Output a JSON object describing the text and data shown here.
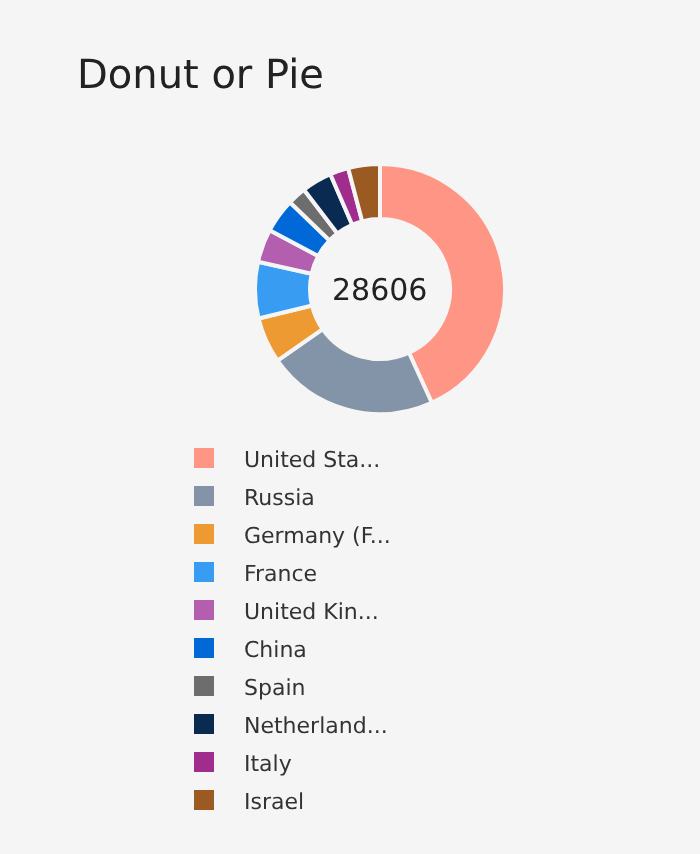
{
  "chart_data": {
    "type": "donut",
    "title": "Donut or Pie",
    "categories": [
      "United Sta...",
      "Russia",
      "Germany (F...",
      "France",
      "United Kin...",
      "China",
      "Spain",
      "Netherland...",
      "Italy",
      "Israel"
    ],
    "values": [
      43.2,
      22.1,
      5.9,
      7.3,
      4.3,
      4.4,
      2.4,
      3.9,
      2.4,
      4.1
    ],
    "colors": [
      "#ff9584",
      "#8494a8",
      "#ee9a32",
      "#379cf2",
      "#b35eaf",
      "#0068d7",
      "#6d6d6d",
      "#0a2a52",
      "#a02d8d",
      "#9a5a22"
    ],
    "annotations": [
      "28606"
    ],
    "legend": "bottom"
  }
}
